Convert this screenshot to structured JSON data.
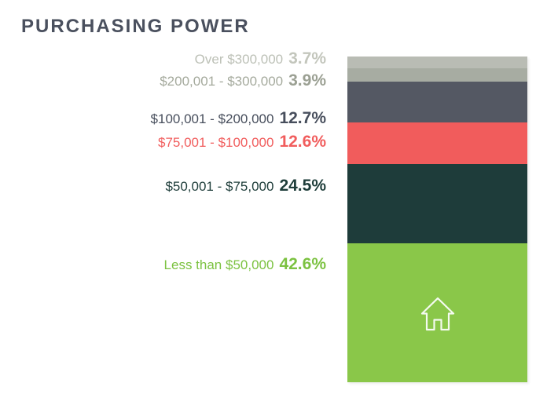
{
  "title": "PURCHASING POWER",
  "colors": {
    "background": "#ffffff",
    "title": "#4a505e",
    "house_icon_stroke": "#f4faf0"
  },
  "icons": {
    "house": "house-outline-icon"
  },
  "chart_data": {
    "type": "bar",
    "subtype": "single-stacked-column",
    "title": "PURCHASING POWER",
    "orientation": "vertical",
    "legend_position": "left-of-bar",
    "grid": false,
    "unit": "percent",
    "total": 100,
    "categories": [
      "Over $300,000",
      "$200,001 - $300,000",
      "$100,001 - $200,000",
      "$75,001 - $100,000",
      "$50,001 - $75,000",
      "Less than $50,000"
    ],
    "values": [
      3.7,
      3.9,
      12.7,
      12.6,
      24.5,
      42.6
    ],
    "value_labels": [
      "3.7%",
      "3.9%",
      "12.7%",
      "12.6%",
      "24.5%",
      "42.6%"
    ],
    "segment_colors": [
      "#b9bcb4",
      "#a7aca2",
      "#545863",
      "#f15c5c",
      "#1e3c3a",
      "#8ac749"
    ],
    "label_colors": [
      "#bcc0b6",
      "#a5aa9d",
      "#474e5c",
      "#f15d5d",
      "#1e3d3a",
      "#7cc241"
    ],
    "value_colors": [
      "#c3c6bc",
      "#9ba093",
      "#474e5c",
      "#f15d5d",
      "#1e3d3a",
      "#7cc241"
    ]
  }
}
